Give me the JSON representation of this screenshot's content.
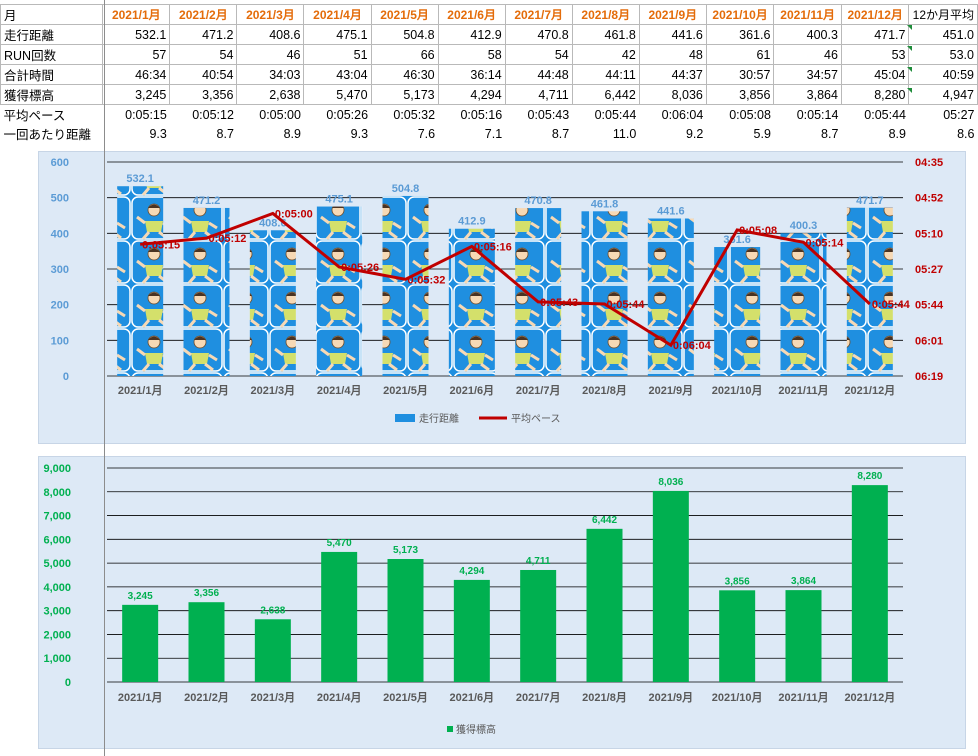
{
  "table": {
    "months": [
      "2021/1月",
      "2021/2月",
      "2021/3月",
      "2021/4月",
      "2021/5月",
      "2021/6月",
      "2021/7月",
      "2021/8月",
      "2021/9月",
      "2021/10月",
      "2021/11月",
      "2021/12月"
    ],
    "header_label": "月",
    "avg_header": "12か月平均",
    "rows": [
      {
        "label": "走行距離",
        "values": [
          "532.1",
          "471.2",
          "408.6",
          "475.1",
          "504.8",
          "412.9",
          "470.8",
          "461.8",
          "441.6",
          "361.6",
          "400.3",
          "471.7"
        ],
        "avg": "451.0"
      },
      {
        "label": "RUN回数",
        "values": [
          "57",
          "54",
          "46",
          "51",
          "66",
          "58",
          "54",
          "42",
          "48",
          "61",
          "46",
          "53"
        ],
        "avg": "53.0"
      },
      {
        "label": "合計時間",
        "values": [
          "46:34",
          "40:54",
          "34:03",
          "43:04",
          "46:30",
          "36:14",
          "44:48",
          "44:11",
          "44:37",
          "30:57",
          "34:57",
          "45:04"
        ],
        "avg": "40:59"
      },
      {
        "label": "獲得標高",
        "values": [
          "3,245",
          "3,356",
          "2,638",
          "5,470",
          "5,173",
          "4,294",
          "4,711",
          "6,442",
          "8,036",
          "3,856",
          "3,864",
          "8,280"
        ],
        "avg": "4,947"
      },
      {
        "label": "平均ペース",
        "values": [
          "0:05:15",
          "0:05:12",
          "0:05:00",
          "0:05:26",
          "0:05:32",
          "0:05:16",
          "0:05:43",
          "0:05:44",
          "0:06:04",
          "0:05:08",
          "0:05:14",
          "0:05:44"
        ],
        "avg": "05:27"
      },
      {
        "label": "一回あたり距離",
        "values": [
          "9.3",
          "8.7",
          "8.9",
          "9.3",
          "7.6",
          "7.1",
          "8.7",
          "11.0",
          "9.2",
          "5.9",
          "8.7",
          "8.9"
        ],
        "avg": "8.6"
      }
    ]
  },
  "colors": {
    "month_header": "#e46c0a",
    "distance_bar": "#1f8fe0",
    "distance_label": "#5b9bd5",
    "pace_line": "#c00000",
    "elevation_bar": "#00b050",
    "elevation_label": "#00b050",
    "chart_bg": "#dde9f6",
    "axis_text": "#595959"
  },
  "chart_data": [
    {
      "type": "bar",
      "categories": [
        "2021/1月",
        "2021/2月",
        "2021/3月",
        "2021/4月",
        "2021/5月",
        "2021/6月",
        "2021/7月",
        "2021/8月",
        "2021/9月",
        "2021/10月",
        "2021/11月",
        "2021/12月"
      ],
      "series": [
        {
          "name": "走行距離",
          "type": "bar",
          "axis": "left",
          "values": [
            532.1,
            471.2,
            408.6,
            475.1,
            504.8,
            412.9,
            470.8,
            461.8,
            441.6,
            361.6,
            400.3,
            471.7
          ],
          "labels": [
            "532.1",
            "471.2",
            "408.6",
            "475.1",
            "504.8",
            "412.9",
            "470.8",
            "461.8",
            "441.6",
            "361.6",
            "400.3",
            "471.7"
          ]
        },
        {
          "name": "平均ペース",
          "type": "line",
          "axis": "right",
          "values_seconds": [
            315,
            312,
            300,
            326,
            332,
            316,
            343,
            344,
            364,
            308,
            314,
            344
          ],
          "labels": [
            "0:05:15",
            "0:05:12",
            "0:05:00",
            "0:05:26",
            "0:05:32",
            "0:05:16",
            "0:05:43",
            "0:05:44",
            "0:06:04",
            "0:05:08",
            "0:05:14",
            "0:05:44"
          ]
        }
      ],
      "y_left": {
        "min": 0,
        "max": 600,
        "ticks": [
          "0",
          "100",
          "200",
          "300",
          "400",
          "500",
          "600"
        ]
      },
      "y_right": {
        "min_seconds": 275,
        "max_seconds": 379,
        "reversed": true,
        "ticks": [
          "04:35",
          "04:52",
          "05:10",
          "05:27",
          "05:44",
          "06:01",
          "06:19"
        ]
      },
      "legend": [
        "走行距離",
        "平均ペース"
      ],
      "legend_position": "bottom",
      "grid": true
    },
    {
      "type": "bar",
      "categories": [
        "2021/1月",
        "2021/2月",
        "2021/3月",
        "2021/4月",
        "2021/5月",
        "2021/6月",
        "2021/7月",
        "2021/8月",
        "2021/9月",
        "2021/10月",
        "2021/11月",
        "2021/12月"
      ],
      "series": [
        {
          "name": "獲得標高",
          "values": [
            3245,
            3356,
            2638,
            5470,
            5173,
            4294,
            4711,
            6442,
            8036,
            3856,
            3864,
            8280
          ],
          "labels": [
            "3,245",
            "3,356",
            "2,638",
            "5,470",
            "5,173",
            "4,294",
            "4,711",
            "6,442",
            "8,036",
            "3,856",
            "3,864",
            "8,280"
          ]
        }
      ],
      "ylim": [
        0,
        9000
      ],
      "y_ticks": [
        "0",
        "1,000",
        "2,000",
        "3,000",
        "4,000",
        "5,000",
        "6,000",
        "7,000",
        "8,000",
        "9,000"
      ],
      "legend": [
        "獲得標高"
      ],
      "legend_position": "bottom",
      "grid": true
    }
  ]
}
